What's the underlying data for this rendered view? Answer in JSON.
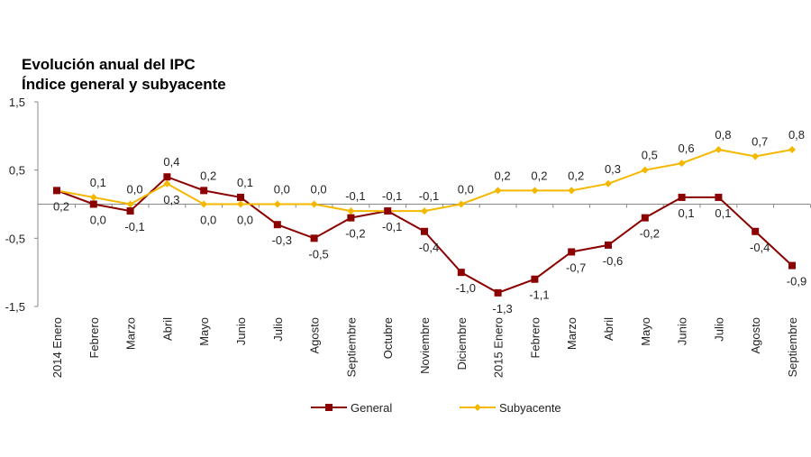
{
  "chart_data": {
    "type": "line",
    "title": "Evolución anual del IPC",
    "subtitle": "Índice general y subyacente",
    "categories": [
      "2014 Enero",
      "Febrero",
      "Marzo",
      "Abril",
      "Mayo",
      "Junio",
      "Julio",
      "Agosto",
      "Septiembre",
      "Octubre",
      "Noviembre",
      "Diciembre",
      "2015 Enero",
      "Febrero",
      "Marzo",
      "Abril",
      "Mayo",
      "Junio",
      "Julio",
      "Agosto",
      "Septiembre"
    ],
    "ylim": [
      -1.5,
      1.5
    ],
    "yticks": [
      1.5,
      0.5,
      -0.5,
      -1.5
    ],
    "ytick_labels": [
      "1,5",
      "0,5",
      "-0,5",
      "-1,5"
    ],
    "grid": false,
    "legend": "bottom",
    "series": [
      {
        "name": "General",
        "color": "#8b0000",
        "marker": "square",
        "values": [
          0.2,
          0.0,
          -0.1,
          0.4,
          0.2,
          0.1,
          -0.3,
          -0.5,
          -0.2,
          -0.1,
          -0.4,
          -1.0,
          -1.3,
          -1.1,
          -0.7,
          -0.6,
          -0.2,
          0.1,
          0.1,
          -0.4,
          -0.9
        ]
      },
      {
        "name": "Subyacente",
        "color": "#f5b800",
        "marker": "diamond",
        "values": [
          0.2,
          0.1,
          0.0,
          0.3,
          0.0,
          0.0,
          0.0,
          0.0,
          -0.1,
          -0.1,
          -0.1,
          0.0,
          0.2,
          0.2,
          0.2,
          0.3,
          0.5,
          0.6,
          0.8,
          0.7,
          0.8
        ]
      }
    ]
  }
}
